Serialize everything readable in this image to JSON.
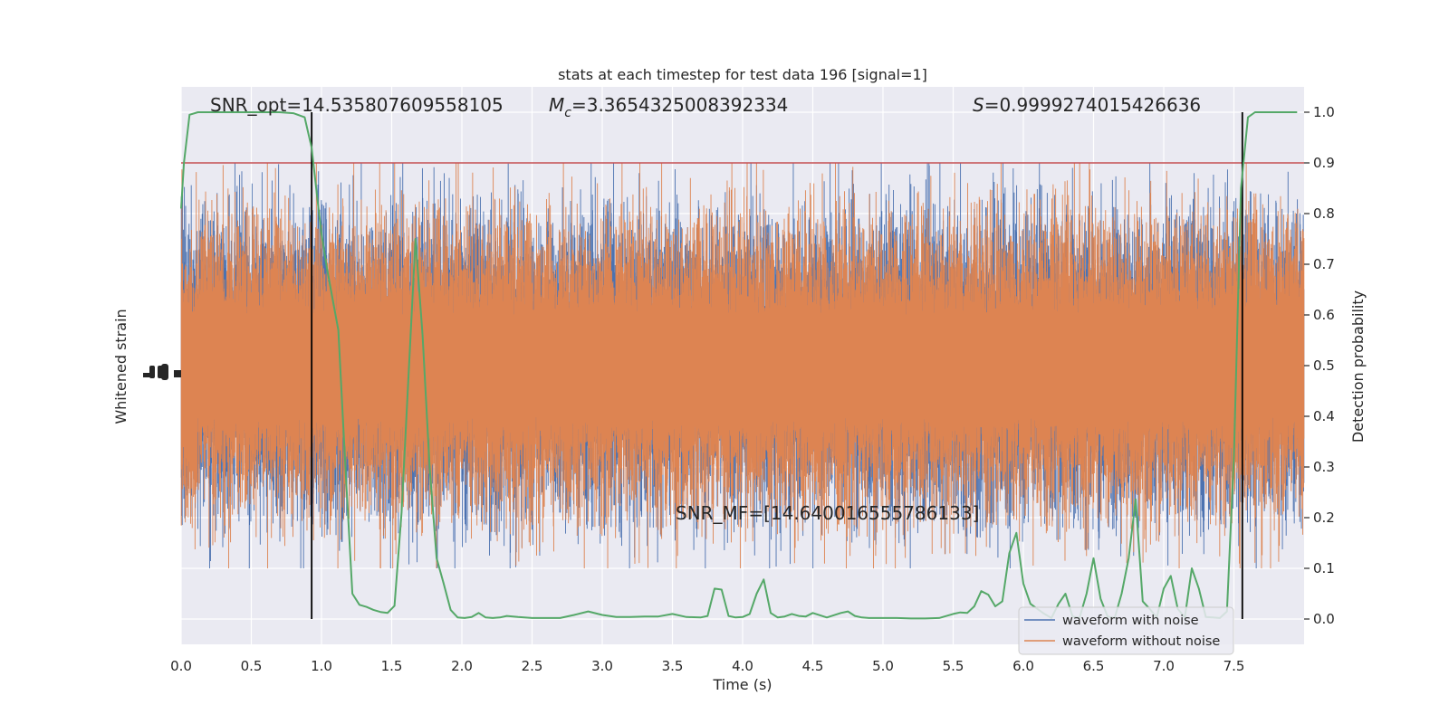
{
  "chart_data": {
    "type": "line",
    "title": "stats at each timestep for test data 196 [signal=1]",
    "xlabel": "Time (s)",
    "ylabel_left": "Whitened strain",
    "ylabel_right": "Detection probability",
    "xlim": [
      0,
      8
    ],
    "ylim_right": [
      -0.05,
      1.05
    ],
    "x_ticks": [
      0.0,
      0.5,
      1.0,
      1.5,
      2.0,
      2.5,
      3.0,
      3.5,
      4.0,
      4.5,
      5.0,
      5.5,
      6.0,
      6.5,
      7.0,
      7.5
    ],
    "x_tick_labels": [
      "0.0",
      "0.5",
      "1.0",
      "1.5",
      "2.0",
      "2.5",
      "3.0",
      "3.5",
      "4.0",
      "4.5",
      "5.0",
      "5.5",
      "6.0",
      "6.5",
      "7.0",
      "7.5"
    ],
    "y_right_ticks": [
      0.0,
      0.1,
      0.2,
      0.3,
      0.4,
      0.5,
      0.6,
      0.7,
      0.8,
      0.9,
      1.0
    ],
    "y_right_tick_labels": [
      "0.0",
      "0.1",
      "0.2",
      "0.3",
      "0.4",
      "0.5",
      "0.6",
      "0.7",
      "0.8",
      "0.9",
      "1.0"
    ],
    "grid": true,
    "threshold": 0.9,
    "vertical_lines_x": [
      0.93,
      7.56
    ],
    "annotations": {
      "snr_opt": "SNR_opt=14.535807609558105",
      "mc_symbol": "M",
      "mc_subscript": "c",
      "mc_value": "=3.3654325008392334",
      "s_symbol": "S",
      "s_value": "=0.9999274015426636",
      "snr_mf": "SNR_MF=[14.640016555786133]"
    },
    "legend": {
      "position": "lower-right",
      "entries": [
        {
          "label": "waveform with noise",
          "color": "#4c72b0"
        },
        {
          "label": "waveform without noise",
          "color": "#dd8452"
        }
      ]
    },
    "series": [
      {
        "name": "waveform with noise",
        "color": "#4c72b0",
        "band": {
          "center": 0.5,
          "core_halfwidth": 0.1,
          "typical_halfwidth": 0.2,
          "max_halfwidth": 0.4
        }
      },
      {
        "name": "waveform without noise",
        "color": "#dd8452",
        "band": {
          "center": 0.5,
          "core_halfwidth": 0.1,
          "typical_halfwidth": 0.2,
          "max_halfwidth": 0.4
        }
      },
      {
        "name": "detection probability",
        "color": "#55a868",
        "x": [
          0.0,
          0.02,
          0.06,
          0.12,
          0.2,
          0.3,
          0.4,
          0.5,
          0.6,
          0.7,
          0.8,
          0.88,
          0.93,
          0.97,
          1.0,
          1.04,
          1.08,
          1.12,
          1.17,
          1.22,
          1.27,
          1.32,
          1.37,
          1.42,
          1.47,
          1.52,
          1.57,
          1.62,
          1.67,
          1.72,
          1.77,
          1.82,
          1.87,
          1.92,
          1.97,
          2.02,
          2.07,
          2.12,
          2.17,
          2.22,
          2.27,
          2.32,
          2.4,
          2.5,
          2.6,
          2.7,
          2.8,
          2.9,
          3.0,
          3.1,
          3.2,
          3.3,
          3.4,
          3.5,
          3.6,
          3.7,
          3.75,
          3.8,
          3.85,
          3.9,
          3.95,
          4.0,
          4.05,
          4.1,
          4.15,
          4.2,
          4.25,
          4.3,
          4.35,
          4.4,
          4.45,
          4.5,
          4.6,
          4.7,
          4.75,
          4.8,
          4.85,
          4.9,
          5.0,
          5.1,
          5.2,
          5.3,
          5.4,
          5.5,
          5.55,
          5.6,
          5.65,
          5.7,
          5.75,
          5.8,
          5.85,
          5.9,
          5.95,
          6.0,
          6.05,
          6.1,
          6.15,
          6.2,
          6.25,
          6.3,
          6.35,
          6.4,
          6.45,
          6.5,
          6.55,
          6.6,
          6.65,
          6.7,
          6.75,
          6.8,
          6.85,
          6.9,
          6.95,
          7.0,
          7.05,
          7.1,
          7.15,
          7.2,
          7.25,
          7.3,
          7.35,
          7.4,
          7.45,
          7.5,
          7.55,
          7.6,
          7.65,
          7.7,
          7.8,
          7.9,
          7.95
        ],
        "y": [
          0.81,
          0.9,
          0.995,
          1.0,
          1.0,
          1.0,
          1.0,
          1.0,
          1.0,
          1.0,
          0.998,
          0.99,
          0.93,
          0.83,
          0.76,
          0.69,
          0.63,
          0.57,
          0.3,
          0.05,
          0.028,
          0.024,
          0.018,
          0.014,
          0.012,
          0.026,
          0.21,
          0.48,
          0.75,
          0.56,
          0.3,
          0.12,
          0.07,
          0.018,
          0.003,
          0.002,
          0.004,
          0.012,
          0.003,
          0.002,
          0.003,
          0.006,
          0.004,
          0.002,
          0.002,
          0.002,
          0.008,
          0.015,
          0.008,
          0.004,
          0.004,
          0.005,
          0.005,
          0.01,
          0.004,
          0.003,
          0.006,
          0.06,
          0.058,
          0.006,
          0.003,
          0.004,
          0.01,
          0.05,
          0.078,
          0.012,
          0.003,
          0.005,
          0.01,
          0.006,
          0.005,
          0.012,
          0.003,
          0.012,
          0.015,
          0.006,
          0.003,
          0.002,
          0.002,
          0.002,
          0.001,
          0.001,
          0.002,
          0.01,
          0.013,
          0.012,
          0.025,
          0.055,
          0.048,
          0.025,
          0.035,
          0.13,
          0.17,
          0.07,
          0.03,
          0.02,
          0.01,
          0.002,
          0.03,
          0.05,
          0.005,
          0.002,
          0.05,
          0.12,
          0.04,
          0.005,
          0.002,
          0.05,
          0.12,
          0.236,
          0.035,
          0.02,
          0.003,
          0.06,
          0.085,
          0.02,
          0.003,
          0.1,
          0.06,
          0.004,
          0.003,
          0.002,
          0.015,
          0.32,
          0.85,
          0.99,
          1.0,
          1.0,
          1.0,
          1.0,
          1.0
        ]
      }
    ]
  }
}
